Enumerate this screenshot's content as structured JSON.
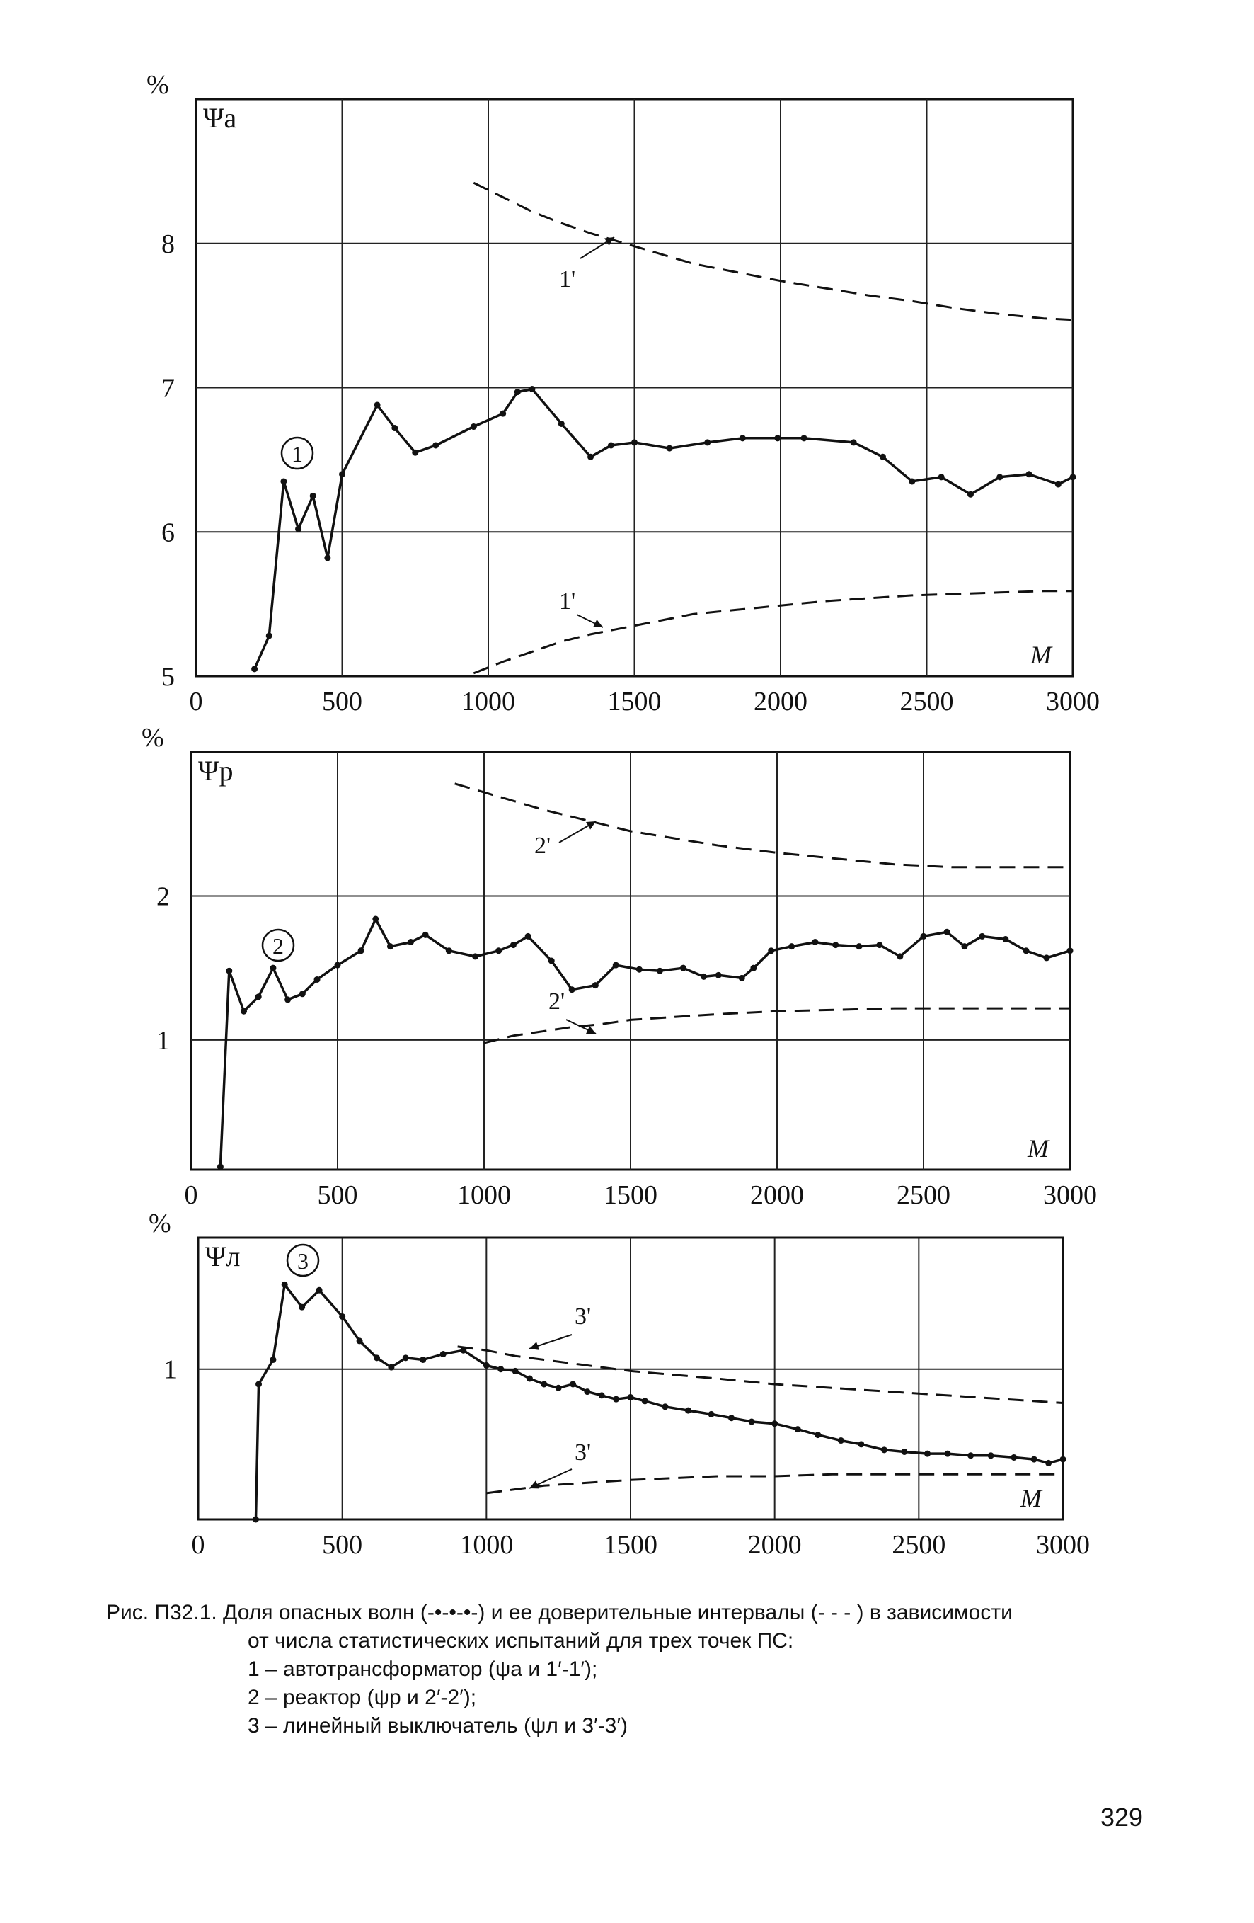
{
  "chart_data": [
    {
      "type": "line",
      "ylabel": "Ψa",
      "yunit": "%",
      "xlabel": "M",
      "xlim": [
        0,
        3000
      ],
      "ylim": [
        5,
        9
      ],
      "x_ticks": [
        "0",
        "500",
        "1000",
        "1500",
        "2000",
        "2500",
        "3000"
      ],
      "y_ticks": [
        "5",
        "6",
        "7",
        "8"
      ],
      "grid": true,
      "series": [
        {
          "name": "1",
          "style": "dot-dash",
          "x": [
            200,
            250,
            300,
            350,
            400,
            450,
            500,
            620,
            680,
            750,
            820,
            950,
            1050,
            1100,
            1150,
            1250,
            1350,
            1420,
            1500,
            1620,
            1750,
            1870,
            1990,
            2080,
            2250,
            2350,
            2450,
            2550,
            2650,
            2750,
            2850,
            2950,
            3000
          ],
          "y": [
            5.05,
            5.28,
            6.35,
            6.02,
            6.25,
            5.82,
            6.4,
            6.88,
            6.72,
            6.55,
            6.6,
            6.73,
            6.82,
            6.97,
            6.99,
            6.75,
            6.52,
            6.6,
            6.62,
            6.58,
            6.62,
            6.65,
            6.65,
            6.65,
            6.62,
            6.52,
            6.35,
            6.38,
            6.26,
            6.38,
            6.4,
            6.33,
            6.38
          ]
        },
        {
          "name": "1'",
          "style": "dashed",
          "x": [
            950,
            1050,
            1150,
            1250,
            1350,
            1450,
            1550,
            1700,
            1850,
            2000,
            2150,
            2300,
            2450,
            2600,
            2750,
            2900,
            3000
          ],
          "y": [
            8.42,
            8.32,
            8.22,
            8.14,
            8.07,
            8.01,
            7.95,
            7.86,
            7.8,
            7.74,
            7.69,
            7.64,
            7.6,
            7.55,
            7.51,
            7.48,
            7.47
          ]
        },
        {
          "name": "1'",
          "style": "dashed",
          "x": [
            950,
            1050,
            1150,
            1250,
            1350,
            1450,
            1550,
            1700,
            1850,
            2000,
            2150,
            2300,
            2450,
            2600,
            2750,
            2900,
            3000
          ],
          "y": [
            5.02,
            5.1,
            5.17,
            5.24,
            5.29,
            5.33,
            5.37,
            5.43,
            5.46,
            5.49,
            5.52,
            5.54,
            5.56,
            5.57,
            5.58,
            5.59,
            5.59
          ]
        }
      ],
      "annotations": [
        "1",
        "1'",
        "1'"
      ]
    },
    {
      "type": "line",
      "ylabel": "Ψр",
      "yunit": "%",
      "xlabel": "M",
      "xlim": [
        0,
        3000
      ],
      "ylim": [
        0.1,
        3.0
      ],
      "x_ticks": [
        "0",
        "500",
        "1000",
        "1500",
        "2000",
        "2500",
        "3000"
      ],
      "y_ticks": [
        "1",
        "2"
      ],
      "grid": true,
      "series": [
        {
          "name": "2",
          "style": "dot-dash",
          "x": [
            100,
            130,
            180,
            230,
            280,
            330,
            380,
            430,
            500,
            580,
            630,
            680,
            750,
            800,
            880,
            970,
            1050,
            1100,
            1150,
            1230,
            1300,
            1380,
            1450,
            1530,
            1600,
            1680,
            1750,
            1800,
            1880,
            1920,
            1980,
            2050,
            2130,
            2200,
            2280,
            2350,
            2420,
            2500,
            2580,
            2640,
            2700,
            2780,
            2850,
            2920,
            3000
          ],
          "y": [
            0.12,
            1.48,
            1.2,
            1.3,
            1.5,
            1.28,
            1.32,
            1.42,
            1.52,
            1.62,
            1.84,
            1.65,
            1.68,
            1.73,
            1.62,
            1.58,
            1.62,
            1.66,
            1.72,
            1.55,
            1.35,
            1.38,
            1.52,
            1.49,
            1.48,
            1.5,
            1.44,
            1.45,
            1.43,
            1.5,
            1.62,
            1.65,
            1.68,
            1.66,
            1.65,
            1.66,
            1.58,
            1.72,
            1.75,
            1.65,
            1.72,
            1.7,
            1.62,
            1.57,
            1.62
          ]
        },
        {
          "name": "2'",
          "style": "dashed",
          "x": [
            900,
            1000,
            1100,
            1200,
            1300,
            1400,
            1500,
            1650,
            1800,
            2000,
            2200,
            2400,
            2600,
            2800,
            3000
          ],
          "y": [
            2.78,
            2.72,
            2.66,
            2.6,
            2.55,
            2.5,
            2.45,
            2.4,
            2.35,
            2.3,
            2.26,
            2.22,
            2.2,
            2.2,
            2.2
          ]
        },
        {
          "name": "2'",
          "style": "dashed",
          "x": [
            1000,
            1100,
            1200,
            1300,
            1400,
            1500,
            1650,
            1800,
            2000,
            2200,
            2400,
            2600,
            2800,
            3000
          ],
          "y": [
            0.98,
            1.03,
            1.06,
            1.09,
            1.11,
            1.14,
            1.16,
            1.18,
            1.2,
            1.21,
            1.22,
            1.22,
            1.22,
            1.22
          ]
        }
      ],
      "annotations": [
        "2",
        "2'",
        "2'"
      ]
    },
    {
      "type": "line",
      "ylabel": "Ψл",
      "yunit": "%",
      "xlabel": "M",
      "xlim": [
        0,
        3000
      ],
      "ylim": [
        0.2,
        1.7
      ],
      "x_ticks": [
        "0",
        "500",
        "1000",
        "1500",
        "2000",
        "2500",
        "3000"
      ],
      "y_ticks": [
        "1"
      ],
      "grid": true,
      "series": [
        {
          "name": "3",
          "style": "dot-dash",
          "x": [
            200,
            210,
            260,
            300,
            360,
            420,
            500,
            560,
            620,
            670,
            720,
            780,
            850,
            920,
            1000,
            1050,
            1100,
            1150,
            1200,
            1250,
            1300,
            1350,
            1400,
            1450,
            1500,
            1550,
            1620,
            1700,
            1780,
            1850,
            1920,
            2000,
            2080,
            2150,
            2230,
            2300,
            2380,
            2450,
            2530,
            2600,
            2680,
            2750,
            2830,
            2900,
            2950,
            3000
          ],
          "y": [
            0.2,
            0.92,
            1.05,
            1.45,
            1.33,
            1.42,
            1.28,
            1.15,
            1.06,
            1.01,
            1.06,
            1.05,
            1.08,
            1.1,
            1.02,
            1.0,
            0.99,
            0.95,
            0.92,
            0.9,
            0.92,
            0.88,
            0.86,
            0.84,
            0.85,
            0.83,
            0.8,
            0.78,
            0.76,
            0.74,
            0.72,
            0.71,
            0.68,
            0.65,
            0.62,
            0.6,
            0.57,
            0.56,
            0.55,
            0.55,
            0.54,
            0.54,
            0.53,
            0.52,
            0.5,
            0.52
          ]
        },
        {
          "name": "3'",
          "style": "dashed",
          "x": [
            900,
            1000,
            1100,
            1200,
            1300,
            1400,
            1500,
            1650,
            1800,
            2000,
            2200,
            2400,
            2600,
            2800,
            3000
          ],
          "y": [
            1.12,
            1.1,
            1.07,
            1.05,
            1.03,
            1.01,
            0.99,
            0.97,
            0.95,
            0.92,
            0.9,
            0.88,
            0.86,
            0.84,
            0.82
          ]
        },
        {
          "name": "3'",
          "style": "dashed",
          "x": [
            1000,
            1100,
            1200,
            1300,
            1400,
            1500,
            1650,
            1800,
            2000,
            2200,
            2400,
            2600,
            2800,
            3000
          ],
          "y": [
            0.34,
            0.36,
            0.38,
            0.39,
            0.4,
            0.41,
            0.42,
            0.43,
            0.43,
            0.44,
            0.44,
            0.44,
            0.44,
            0.44
          ]
        }
      ],
      "annotations": [
        "3",
        "3'",
        "3'"
      ]
    }
  ],
  "caption": {
    "line1": "Рис. П32.1. Доля опасных волн (-•-•-•-) и ее доверительные интервалы (- - - ) в зависимости",
    "line2": "от числа статистических испытаний для трех точек ПС:",
    "line3": "1 – автотрансформатор (ψа и 1′-1′);",
    "line4": "2 – реактор (ψр и 2′-2′);",
    "line5": "3 – линейный выключатель (ψл и 3′-3′)"
  },
  "page_number": "329"
}
